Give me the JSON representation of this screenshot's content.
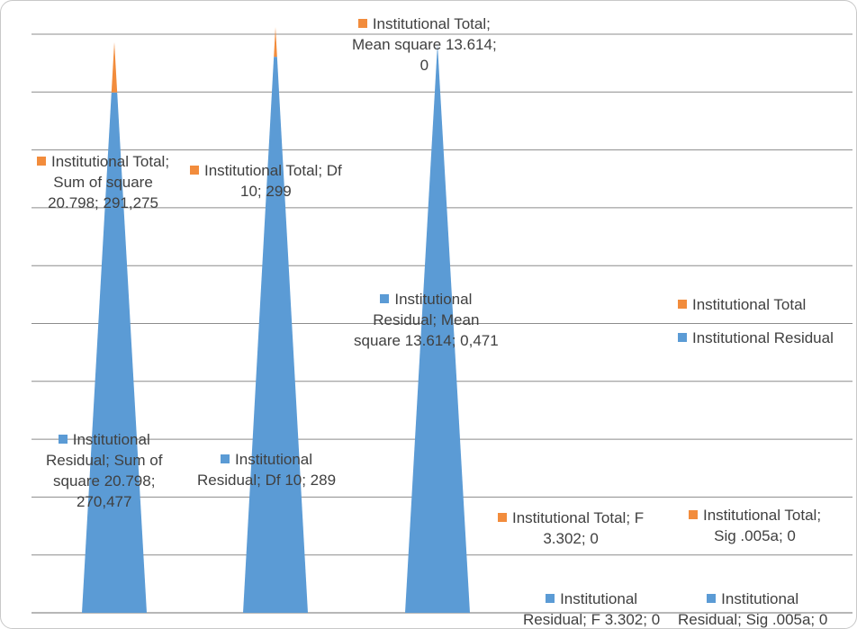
{
  "colors": {
    "total": "#F28C3C",
    "residual": "#5B9BD5",
    "grid": "#8c8c8c"
  },
  "chart_data": {
    "type": "area",
    "subtype": "stacked-cone",
    "categories": [
      "Sum of square 20.798",
      "Df 10",
      "Mean square 13.614",
      "F 3.302",
      "Sig .005a"
    ],
    "series": [
      {
        "name": "Institutional Residual",
        "color": "#5B9BD5",
        "values": [
          270.477,
          289,
          0.471,
          0,
          0
        ]
      },
      {
        "name": "Institutional Total",
        "color": "#F28C3C",
        "values": [
          291.275,
          299,
          0,
          0,
          0
        ]
      }
    ],
    "grid": true,
    "legend_position": "right",
    "data_labels": [
      {
        "series": "total",
        "category_index": 0,
        "lines": [
          "Institutional Total;",
          "Sum of square",
          "20.798; 291,275"
        ]
      },
      {
        "series": "total",
        "category_index": 1,
        "lines": [
          "Institutional Total; Df",
          "10; 299"
        ]
      },
      {
        "series": "total",
        "category_index": 2,
        "lines": [
          "Institutional Total;",
          "Mean square 13.614;",
          "0"
        ]
      },
      {
        "series": "total",
        "category_index": 3,
        "lines": [
          "Institutional Total; F",
          "3.302; 0"
        ]
      },
      {
        "series": "total",
        "category_index": 4,
        "lines": [
          "Institutional Total;",
          "Sig .005a; 0"
        ]
      },
      {
        "series": "residual",
        "category_index": 0,
        "lines": [
          "Institutional",
          "Residual; Sum of",
          "square 20.798;",
          "270,477"
        ]
      },
      {
        "series": "residual",
        "category_index": 1,
        "lines": [
          "Institutional",
          "Residual; Df 10; 289"
        ]
      },
      {
        "series": "residual",
        "category_index": 2,
        "lines": [
          "Institutional",
          "Residual; Mean",
          "square 13.614; 0,471"
        ]
      },
      {
        "series": "residual",
        "category_index": 3,
        "lines": [
          "Institutional",
          "Residual; F 3.302; 0"
        ]
      },
      {
        "series": "residual",
        "category_index": 4,
        "lines": [
          "Institutional",
          "Residual; Sig .005a; 0"
        ]
      }
    ],
    "legend": [
      "Institutional Total",
      "Institutional Residual"
    ]
  }
}
